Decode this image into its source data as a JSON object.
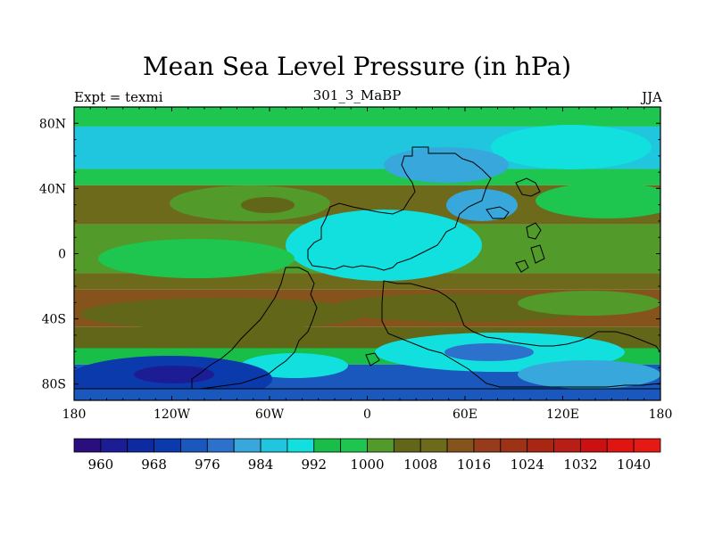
{
  "chart_data": {
    "type": "heatmap",
    "title": "Mean Sea Level Pressure (in hPa)",
    "left_label": "Expt = texmi",
    "center_label": "301_3_MaBP",
    "right_label": "JJA",
    "x_ticks": [
      "180",
      "120W",
      "60W",
      "0",
      "60E",
      "120E",
      "180"
    ],
    "x_tick_values": [
      -180,
      -120,
      -60,
      0,
      60,
      120,
      180
    ],
    "y_ticks": [
      "80N",
      "40N",
      "0",
      "40S",
      "80S"
    ],
    "y_tick_values": [
      80,
      40,
      0,
      -40,
      -80
    ],
    "xlim": [
      -180,
      180
    ],
    "ylim": [
      -90,
      90
    ],
    "colorbar_levels": [
      956,
      960,
      964,
      968,
      972,
      976,
      980,
      984,
      988,
      992,
      996,
      1000,
      1004,
      1008,
      1012,
      1016,
      1020,
      1024,
      1028,
      1032,
      1036,
      1040,
      1044
    ],
    "colorbar_labels": [
      "960",
      "968",
      "976",
      "984",
      "992",
      "1000",
      "1008",
      "1016",
      "1024",
      "1032",
      "1040"
    ],
    "colorbar_colors": [
      "#2a0e7e",
      "#1c1d94",
      "#0e2aa0",
      "#0a3aac",
      "#1a58be",
      "#2c72cc",
      "#38a8dc",
      "#1fc6de",
      "#11e0de",
      "#18be48",
      "#1ec650",
      "#529a2a",
      "#626618",
      "#6e6a1c",
      "#84541c",
      "#963c1a",
      "#9e3216",
      "#a82612",
      "#b81e16",
      "#cc1012",
      "#e01410",
      "#e61a14"
    ],
    "field_bands": [
      {
        "lat_range": [
          90,
          78
        ],
        "level": 996
      },
      {
        "lat_range": [
          78,
          52
        ],
        "level": 984
      },
      {
        "lat_range": [
          52,
          42
        ],
        "level": 996
      },
      {
        "lat_range": [
          42,
          18
        ],
        "level": 1008
      },
      {
        "lat_range": [
          18,
          -12
        ],
        "level": 1000
      },
      {
        "lat_range": [
          -12,
          -22
        ],
        "level": 1008
      },
      {
        "lat_range": [
          -22,
          -45
        ],
        "level": 1012
      },
      {
        "lat_range": [
          -45,
          -58
        ],
        "level": 1004
      },
      {
        "lat_range": [
          -58,
          -68
        ],
        "level": 992
      },
      {
        "lat_range": [
          -68,
          -90
        ],
        "level": 972
      }
    ]
  }
}
